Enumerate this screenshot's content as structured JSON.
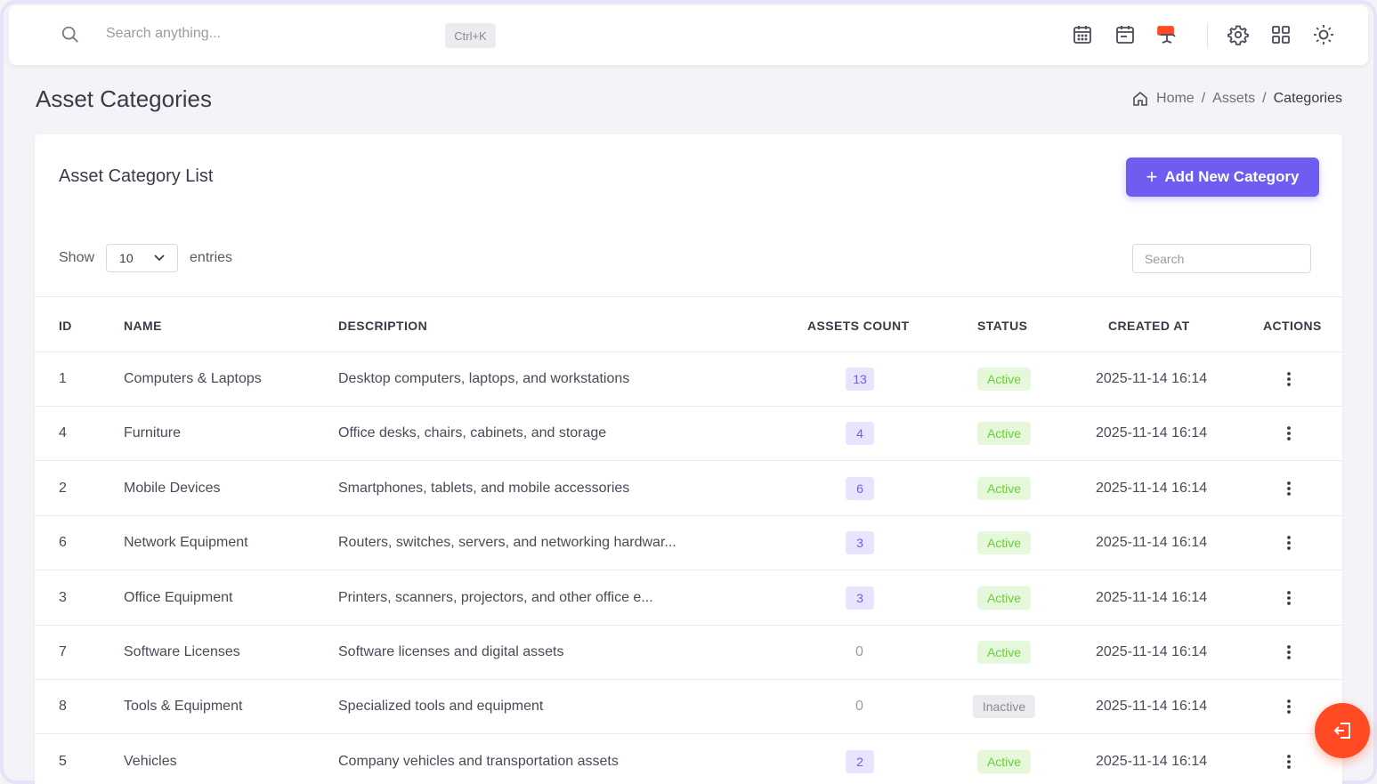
{
  "topbar": {
    "search_placeholder": "Search anything...",
    "shortcut": "Ctrl+K",
    "icons": [
      "calendar-grid-icon",
      "calendar-icon",
      "whiteboard-icon",
      "gear-icon",
      "apps-grid-icon",
      "sun-icon"
    ],
    "accent_red": "#ff4a24"
  },
  "page": {
    "title": "Asset Categories",
    "breadcrumb": [
      "Home",
      "Assets",
      "Categories"
    ],
    "breadcrumb_sep": "/"
  },
  "card": {
    "title": "Asset Category List",
    "add_button": "Add New Category",
    "show_label": "Show",
    "entries_label": "entries",
    "page_size": "10",
    "search_placeholder": "Search"
  },
  "table": {
    "headers": {
      "id": "ID",
      "name": "NAME",
      "description": "DESCRIPTION",
      "count": "ASSETS COUNT",
      "status": "STATUS",
      "created": "CREATED AT",
      "actions": "ACTIONS"
    },
    "rows": [
      {
        "id": "1",
        "name": "Computers & Laptops",
        "description": "Desktop computers, laptops, and workstations",
        "count": "13",
        "status": "Active",
        "created": "2025-11-14 16:14"
      },
      {
        "id": "4",
        "name": "Furniture",
        "description": "Office desks, chairs, cabinets, and storage",
        "count": "4",
        "status": "Active",
        "created": "2025-11-14 16:14"
      },
      {
        "id": "2",
        "name": "Mobile Devices",
        "description": "Smartphones, tablets, and mobile accessories",
        "count": "6",
        "status": "Active",
        "created": "2025-11-14 16:14"
      },
      {
        "id": "6",
        "name": "Network Equipment",
        "description": "Routers, switches, servers, and networking hardwar...",
        "count": "3",
        "status": "Active",
        "created": "2025-11-14 16:14"
      },
      {
        "id": "3",
        "name": "Office Equipment",
        "description": "Printers, scanners, projectors, and other office e...",
        "count": "3",
        "status": "Active",
        "created": "2025-11-14 16:14"
      },
      {
        "id": "7",
        "name": "Software Licenses",
        "description": "Software licenses and digital assets",
        "count": "0",
        "status": "Active",
        "created": "2025-11-14 16:14"
      },
      {
        "id": "8",
        "name": "Tools & Equipment",
        "description": "Specialized tools and equipment",
        "count": "0",
        "status": "Inactive",
        "created": "2025-11-14 16:14"
      },
      {
        "id": "5",
        "name": "Vehicles",
        "description": "Company vehicles and transportation assets",
        "count": "2",
        "status": "Active",
        "created": "2025-11-14 16:14"
      }
    ]
  },
  "colors": {
    "primary": "#6f5cf1",
    "active": "#6ccd3a",
    "inactive": "#8a8a96"
  }
}
